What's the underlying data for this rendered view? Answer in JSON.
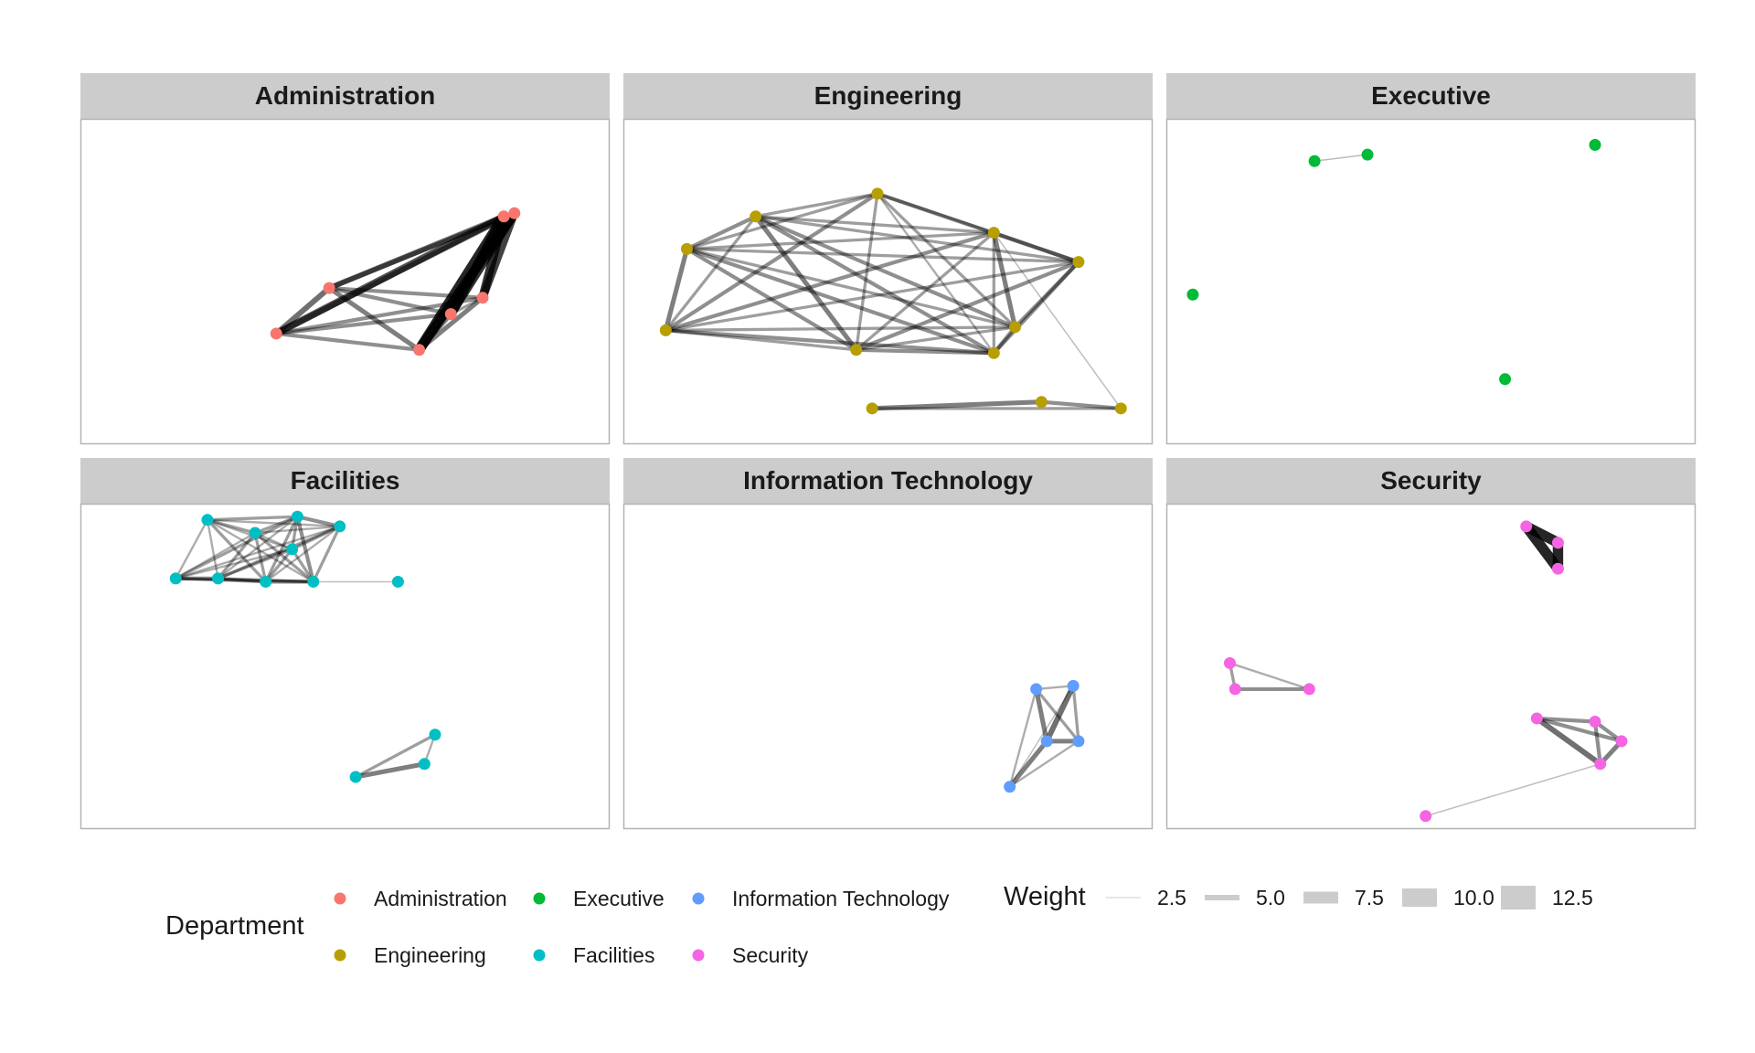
{
  "colors": {
    "Administration": "#F8766D",
    "Engineering": "#B79F00",
    "Executive": "#00BA38",
    "Facilities": "#00BFC4",
    "Information Technology": "#619CFF",
    "Security": "#F564E3",
    "strip_fill": "#CCCCCC",
    "panel_border": "#B3B3B3",
    "edge": "#000000",
    "legend_key_fill": "#CCCCCC"
  },
  "panels": [
    {
      "title": "Administration",
      "department": "Administration",
      "nodes": [
        [
          0.8,
          0.3
        ],
        [
          0.82,
          0.29
        ],
        [
          0.47,
          0.52
        ],
        [
          0.76,
          0.55
        ],
        [
          0.7,
          0.6
        ],
        [
          0.37,
          0.66
        ],
        [
          0.64,
          0.71
        ]
      ],
      "edges": [
        [
          0,
          2,
          6
        ],
        [
          0,
          3,
          10
        ],
        [
          0,
          4,
          11
        ],
        [
          0,
          5,
          8
        ],
        [
          0,
          6,
          12
        ],
        [
          1,
          2,
          5
        ],
        [
          1,
          3,
          9
        ],
        [
          1,
          4,
          10
        ],
        [
          1,
          6,
          11
        ],
        [
          1,
          5,
          6
        ],
        [
          2,
          3,
          4
        ],
        [
          2,
          4,
          4
        ],
        [
          2,
          5,
          6
        ],
        [
          2,
          6,
          5
        ],
        [
          3,
          4,
          3
        ],
        [
          3,
          5,
          4
        ],
        [
          3,
          6,
          5
        ],
        [
          4,
          5,
          4
        ],
        [
          4,
          6,
          5
        ],
        [
          5,
          6,
          4
        ]
      ]
    },
    {
      "title": "Engineering",
      "department": "Engineering",
      "nodes": [
        [
          0.48,
          0.23
        ],
        [
          0.25,
          0.3
        ],
        [
          0.7,
          0.35
        ],
        [
          0.12,
          0.4
        ],
        [
          0.86,
          0.44
        ],
        [
          0.74,
          0.64
        ],
        [
          0.08,
          0.65
        ],
        [
          0.44,
          0.71
        ],
        [
          0.7,
          0.72
        ],
        [
          0.94,
          0.89
        ],
        [
          0.79,
          0.87
        ],
        [
          0.47,
          0.89
        ]
      ],
      "edges": [
        [
          0,
          1,
          3
        ],
        [
          0,
          2,
          3
        ],
        [
          0,
          3,
          3
        ],
        [
          0,
          4,
          4
        ],
        [
          0,
          5,
          3
        ],
        [
          0,
          6,
          4
        ],
        [
          0,
          7,
          3
        ],
        [
          0,
          8,
          2
        ],
        [
          1,
          2,
          3
        ],
        [
          1,
          3,
          4
        ],
        [
          1,
          4,
          3
        ],
        [
          1,
          5,
          4
        ],
        [
          1,
          6,
          3
        ],
        [
          1,
          7,
          5
        ],
        [
          1,
          8,
          4
        ],
        [
          2,
          3,
          3
        ],
        [
          2,
          4,
          4
        ],
        [
          2,
          5,
          5
        ],
        [
          2,
          6,
          4
        ],
        [
          2,
          7,
          3
        ],
        [
          2,
          8,
          3
        ],
        [
          3,
          4,
          3
        ],
        [
          3,
          5,
          3
        ],
        [
          3,
          6,
          5
        ],
        [
          3,
          7,
          4
        ],
        [
          3,
          8,
          4
        ],
        [
          4,
          5,
          4
        ],
        [
          4,
          6,
          3
        ],
        [
          4,
          7,
          4
        ],
        [
          4,
          8,
          4
        ],
        [
          5,
          6,
          3
        ],
        [
          5,
          7,
          3
        ],
        [
          5,
          8,
          4
        ],
        [
          6,
          7,
          3
        ],
        [
          6,
          8,
          4
        ],
        [
          7,
          8,
          4
        ],
        [
          2,
          9,
          1
        ],
        [
          9,
          10,
          4
        ],
        [
          9,
          11,
          3
        ],
        [
          10,
          11,
          5
        ]
      ]
    },
    {
      "title": "Executive",
      "department": "Executive",
      "nodes": [
        [
          0.28,
          0.13
        ],
        [
          0.38,
          0.11
        ],
        [
          0.05,
          0.54
        ],
        [
          0.64,
          0.8
        ],
        [
          0.81,
          0.08
        ]
      ],
      "edges": [
        [
          0,
          1,
          1
        ]
      ]
    },
    {
      "title": "Facilities",
      "department": "Facilities",
      "nodes": [
        [
          0.24,
          0.05
        ],
        [
          0.41,
          0.04
        ],
        [
          0.33,
          0.09
        ],
        [
          0.4,
          0.14
        ],
        [
          0.49,
          0.07
        ],
        [
          0.18,
          0.23
        ],
        [
          0.35,
          0.24
        ],
        [
          0.26,
          0.23
        ],
        [
          0.44,
          0.24
        ],
        [
          0.6,
          0.24
        ],
        [
          0.67,
          0.71
        ],
        [
          0.65,
          0.8
        ],
        [
          0.52,
          0.84
        ]
      ],
      "edges": [
        [
          0,
          1,
          3
        ],
        [
          0,
          2,
          3
        ],
        [
          0,
          3,
          2
        ],
        [
          0,
          4,
          2
        ],
        [
          0,
          5,
          2
        ],
        [
          0,
          6,
          3
        ],
        [
          0,
          7,
          2
        ],
        [
          0,
          8,
          2
        ],
        [
          1,
          2,
          3
        ],
        [
          1,
          3,
          3
        ],
        [
          1,
          4,
          4
        ],
        [
          1,
          5,
          3
        ],
        [
          1,
          6,
          3
        ],
        [
          1,
          7,
          2
        ],
        [
          1,
          8,
          4
        ],
        [
          2,
          3,
          2
        ],
        [
          2,
          4,
          2
        ],
        [
          2,
          5,
          2
        ],
        [
          2,
          6,
          3
        ],
        [
          2,
          7,
          3
        ],
        [
          2,
          8,
          3
        ],
        [
          3,
          4,
          3
        ],
        [
          3,
          5,
          2
        ],
        [
          3,
          6,
          3
        ],
        [
          3,
          7,
          3
        ],
        [
          3,
          8,
          3
        ],
        [
          4,
          5,
          2
        ],
        [
          4,
          6,
          2
        ],
        [
          4,
          7,
          3
        ],
        [
          4,
          8,
          3
        ],
        [
          5,
          6,
          3
        ],
        [
          5,
          7,
          4
        ],
        [
          5,
          8,
          3
        ],
        [
          6,
          7,
          3
        ],
        [
          6,
          8,
          4
        ],
        [
          7,
          8,
          3
        ],
        [
          8,
          9,
          1
        ],
        [
          10,
          12,
          3
        ],
        [
          10,
          11,
          2
        ],
        [
          11,
          12,
          5
        ]
      ]
    },
    {
      "title": "Information Technology",
      "department": "Information Technology",
      "nodes": [
        [
          0.85,
          0.56
        ],
        [
          0.78,
          0.57
        ],
        [
          0.8,
          0.73
        ],
        [
          0.86,
          0.73
        ],
        [
          0.73,
          0.87
        ]
      ],
      "edges": [
        [
          0,
          1,
          2
        ],
        [
          0,
          2,
          6
        ],
        [
          0,
          3,
          3
        ],
        [
          1,
          2,
          5
        ],
        [
          1,
          3,
          3
        ],
        [
          1,
          4,
          2
        ],
        [
          2,
          3,
          5
        ],
        [
          2,
          4,
          5
        ],
        [
          3,
          4,
          2
        ],
        [
          0,
          4,
          1
        ]
      ]
    },
    {
      "title": "Security",
      "department": "Security",
      "nodes": [
        [
          0.68,
          0.07
        ],
        [
          0.74,
          0.12
        ],
        [
          0.74,
          0.2
        ],
        [
          0.12,
          0.49
        ],
        [
          0.13,
          0.57
        ],
        [
          0.27,
          0.57
        ],
        [
          0.7,
          0.66
        ],
        [
          0.81,
          0.67
        ],
        [
          0.86,
          0.73
        ],
        [
          0.82,
          0.8
        ],
        [
          0.49,
          0.96
        ]
      ],
      "edges": [
        [
          0,
          1,
          12
        ],
        [
          0,
          2,
          12
        ],
        [
          1,
          2,
          12
        ],
        [
          3,
          4,
          3
        ],
        [
          3,
          5,
          2
        ],
        [
          4,
          5,
          4
        ],
        [
          6,
          7,
          4
        ],
        [
          6,
          8,
          4
        ],
        [
          6,
          9,
          6
        ],
        [
          7,
          8,
          4
        ],
        [
          7,
          9,
          4
        ],
        [
          8,
          9,
          5
        ],
        [
          9,
          10,
          1
        ]
      ]
    }
  ],
  "legend": {
    "department_title": "Department",
    "departments": [
      "Administration",
      "Executive",
      "Information Technology",
      "Engineering",
      "Facilities",
      "Security"
    ],
    "weight_title": "Weight",
    "weights": [
      "2.5",
      "5.0",
      "7.5",
      "10.0",
      "12.5"
    ]
  }
}
